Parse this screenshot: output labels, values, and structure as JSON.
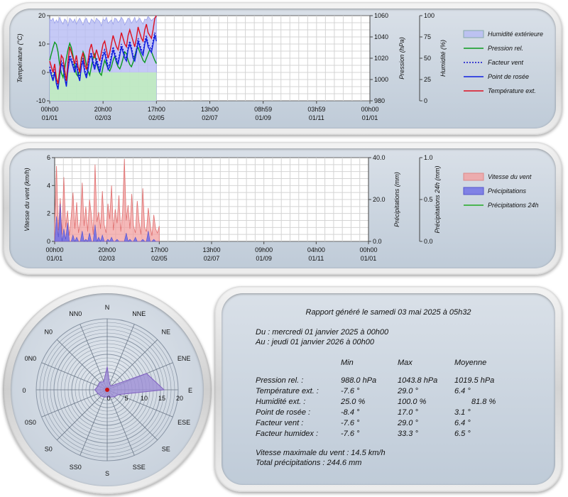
{
  "colors": {
    "humidity": "#b7bcf4",
    "pressure": "#0a9a1e",
    "windchill": "#1010cc",
    "dewpoint": "#1020e0",
    "temperature": "#dd1020",
    "wind": "#f2a0a0",
    "precip": "#6c6ce6",
    "precip24": "#22aa22",
    "rose_fill": "#9d8fd6"
  },
  "chart_data": [
    {
      "type": "line",
      "x_ticks": [
        {
          "t": "00h00",
          "d": "01/01"
        },
        {
          "t": "20h00",
          "d": "02/03"
        },
        {
          "t": "17h00",
          "d": "02/05"
        },
        {
          "t": "13h00",
          "d": "02/07"
        },
        {
          "t": "08h59",
          "d": "01/09"
        },
        {
          "t": "03h59",
          "d": "01/11"
        },
        {
          "t": "00h00",
          "d": "01/01"
        }
      ],
      "y_left": {
        "label": "Température (°C)",
        "range": [
          -10,
          20
        ],
        "ticks": [
          "-10",
          "0",
          "10",
          "20"
        ]
      },
      "y_right1": {
        "label": "Pression (hPa)",
        "range": [
          980,
          1060
        ],
        "ticks": [
          "980",
          "1000",
          "1020",
          "1040",
          "1060"
        ]
      },
      "y_right2": {
        "label": "Humidité (%)",
        "range": [
          0,
          100
        ],
        "ticks": [
          "0",
          "25",
          "50",
          "75",
          "100"
        ]
      },
      "legend_position": "right",
      "legend": [
        "Humidité extérieure",
        "Pression rel.",
        "Facteur vent",
        "Point de rosée",
        "Température ext."
      ],
      "series": {
        "humidity": [
          96,
          94,
          97,
          91,
          95,
          92,
          98,
          93,
          90,
          96,
          94,
          88,
          97,
          95,
          92,
          96,
          90,
          94,
          97,
          93,
          89,
          95,
          97,
          92,
          90,
          96,
          94,
          91,
          97,
          95,
          93,
          88,
          96,
          94,
          98,
          91,
          93,
          95,
          90,
          97,
          96,
          92,
          94,
          98,
          95,
          89,
          93,
          97,
          96,
          91,
          94,
          98,
          92,
          95,
          97,
          93,
          90,
          96,
          95,
          99,
          97,
          94,
          96,
          98,
          100
        ],
        "pressure": [
          1018,
          1024,
          1030,
          1035,
          1033,
          1026,
          1014,
          1006,
          1002,
          1010,
          1020,
          1028,
          1034,
          1030,
          1022,
          1012,
          1005,
          1003,
          1010,
          1018,
          1026,
          1022,
          1014,
          1008,
          1004,
          1012,
          1020,
          1024,
          1016,
          1010,
          1006,
          1004,
          1012,
          1018,
          1014,
          1010,
          1008,
          1012,
          1018,
          1022,
          1016,
          1012,
          1010,
          1014,
          1020,
          1026,
          1024,
          1018,
          1014,
          1012,
          1016,
          1022,
          1028,
          1030,
          1026,
          1022,
          1018,
          1016,
          1020,
          1024,
          1028,
          1026,
          1022,
          1018,
          1015
        ],
        "windchill": [
          2,
          0,
          -2,
          1,
          -3,
          -5,
          0,
          4,
          3,
          -1,
          -4,
          2,
          6,
          5,
          3,
          1,
          4,
          0,
          -2,
          3,
          5,
          1,
          -1,
          2,
          6,
          7,
          4,
          2,
          5,
          3,
          1,
          4,
          7,
          8,
          5,
          2,
          3,
          6,
          9,
          7,
          5,
          4,
          7,
          10,
          8,
          6,
          5,
          9,
          11,
          9,
          6,
          5,
          8,
          12,
          10,
          8,
          7,
          11,
          13,
          10,
          9,
          8,
          11,
          14,
          12
        ],
        "dewpoint": [
          1,
          -1,
          -3,
          0,
          -4,
          -6,
          -1,
          3,
          2,
          -2,
          -5,
          1,
          5,
          4,
          2,
          0,
          3,
          -1,
          -3,
          2,
          4,
          0,
          -2,
          1,
          5,
          6,
          3,
          1,
          4,
          2,
          0,
          3,
          6,
          7,
          4,
          1,
          2,
          5,
          8,
          6,
          4,
          3,
          6,
          9,
          7,
          5,
          4,
          8,
          10,
          8,
          5,
          4,
          7,
          11,
          9,
          7,
          6,
          10,
          12,
          9,
          8,
          7,
          10,
          13,
          11
        ],
        "temperature": [
          4,
          2,
          0,
          3,
          -2,
          -4,
          1,
          6,
          5,
          1,
          -3,
          4,
          9,
          7,
          5,
          3,
          6,
          2,
          0,
          5,
          7,
          3,
          1,
          4,
          8,
          10,
          7,
          5,
          8,
          6,
          4,
          7,
          10,
          11,
          8,
          5,
          7,
          10,
          13,
          11,
          9,
          8,
          11,
          14,
          12,
          10,
          9,
          13,
          15,
          13,
          11,
          9,
          12,
          16,
          14,
          12,
          11,
          15,
          17,
          14,
          13,
          12,
          15,
          19,
          20
        ]
      }
    },
    {
      "type": "bar",
      "x_ticks": [
        {
          "t": "00h00",
          "d": "01/01"
        },
        {
          "t": "20h00",
          "d": "02/03"
        },
        {
          "t": "17h00",
          "d": "02/05"
        },
        {
          "t": "13h00",
          "d": "02/07"
        },
        {
          "t": "09h00",
          "d": "01/09"
        },
        {
          "t": "04h00",
          "d": "01/11"
        },
        {
          "t": "00h00",
          "d": "01/01"
        }
      ],
      "y_left": {
        "label": "Vitesse du vent (km/h)",
        "range": [
          0,
          6
        ],
        "ticks": [
          "0",
          "2",
          "4",
          "6"
        ]
      },
      "y_right1": {
        "label": "Précipitations (mm)",
        "range": [
          0,
          40
        ],
        "ticks": [
          "0.0",
          "20.0",
          "40.0"
        ]
      },
      "y_right2": {
        "label": "Précipitations 24h (mm)",
        "range": [
          0,
          1
        ],
        "ticks": [
          "0.0",
          "0.5",
          "1.0"
        ]
      },
      "legend_position": "right",
      "legend": [
        "Vitesse du vent",
        "Précipitations",
        "Précipitations 24h"
      ],
      "series": {
        "wind": [
          1.2,
          5.4,
          0.8,
          3.1,
          0.5,
          4.6,
          1.0,
          2.2,
          0.4,
          1.8,
          3.5,
          0.9,
          2.8,
          0.6,
          1.5,
          4.2,
          1.1,
          2.5,
          0.7,
          3.0,
          1.9,
          0.5,
          5.5,
          1.4,
          2.1,
          0.9,
          3.6,
          1.2,
          0.6,
          2.7,
          1.6,
          4.0,
          0.8,
          2.3,
          1.3,
          3.3,
          0.7,
          2.0,
          5.9,
          1.5,
          2.6,
          0.9,
          3.4,
          1.1,
          0.6,
          2.9,
          1.4,
          0.5,
          3.8,
          1.0,
          0.7,
          2.4,
          1.2,
          0.4,
          1.9,
          0.9,
          0.6,
          1.1
        ],
        "precip": [
          0,
          12,
          2,
          18,
          0,
          6,
          1,
          9,
          0,
          0,
          3,
          0,
          2,
          0,
          0,
          5,
          0,
          1,
          0,
          4,
          0,
          0,
          8,
          0,
          2,
          0,
          3,
          0,
          0,
          1,
          0,
          2,
          0,
          0,
          1,
          0,
          0,
          0,
          0,
          4,
          0,
          1,
          0,
          0,
          2,
          0,
          0,
          0,
          1,
          0,
          0,
          5,
          0,
          0,
          1,
          0,
          0,
          0
        ]
      }
    },
    {
      "type": "radar",
      "directions": [
        "N",
        "NNE",
        "NE",
        "ENE",
        "E",
        "ESE",
        "SE",
        "SSE",
        "S",
        "SS0",
        "S0",
        "0S0",
        "0",
        "0N0",
        "N0",
        "NN0"
      ],
      "radial_ticks": [
        "0",
        "5",
        "10",
        "15",
        "20"
      ],
      "radial_range": [
        0,
        20
      ],
      "values": [
        6.5,
        1.8,
        1.5,
        12,
        16,
        3.5,
        2.8,
        2.2,
        2.0,
        2.2,
        2.5,
        2.8,
        3.5,
        2.8,
        3.0,
        2.5
      ]
    }
  ],
  "report": {
    "title": "Rapport généré le samedi 03 mai 2025 à 05h32",
    "from": "Du : mercredi 01 janvier 2025 à 00h00",
    "to": "Au : jeudi 01 janvier 2026 à 00h00",
    "headers": [
      "Min",
      "Max",
      "Moyenne"
    ],
    "rows": [
      {
        "label": "Pression rel. :",
        "min": "988.0 hPa",
        "max": "1043.8 hPa",
        "avg": "1019.5 hPa"
      },
      {
        "label": "Température ext. :",
        "min": "-7.6 °",
        "max": "29.0 °",
        "avg": "6.4 °"
      },
      {
        "label": "Humidité ext. :",
        "min": "25.0 %",
        "max": "100.0 %",
        "avg": "81.8 %"
      },
      {
        "label": "Point de rosée :",
        "min": "-8.4 °",
        "max": "17.0 °",
        "avg": "3.1 °"
      },
      {
        "label": "Facteur vent :",
        "min": "-7.6 °",
        "max": "29.0 °",
        "avg": "6.4 °"
      },
      {
        "label": "Facteur humidex :",
        "min": "-7.6 °",
        "max": "33.3 °",
        "avg": "6.5 °"
      }
    ],
    "max_wind": "Vitesse maximale du vent : 14.5 km/h",
    "total_precip": "Total précipitations : 244.6 mm"
  }
}
